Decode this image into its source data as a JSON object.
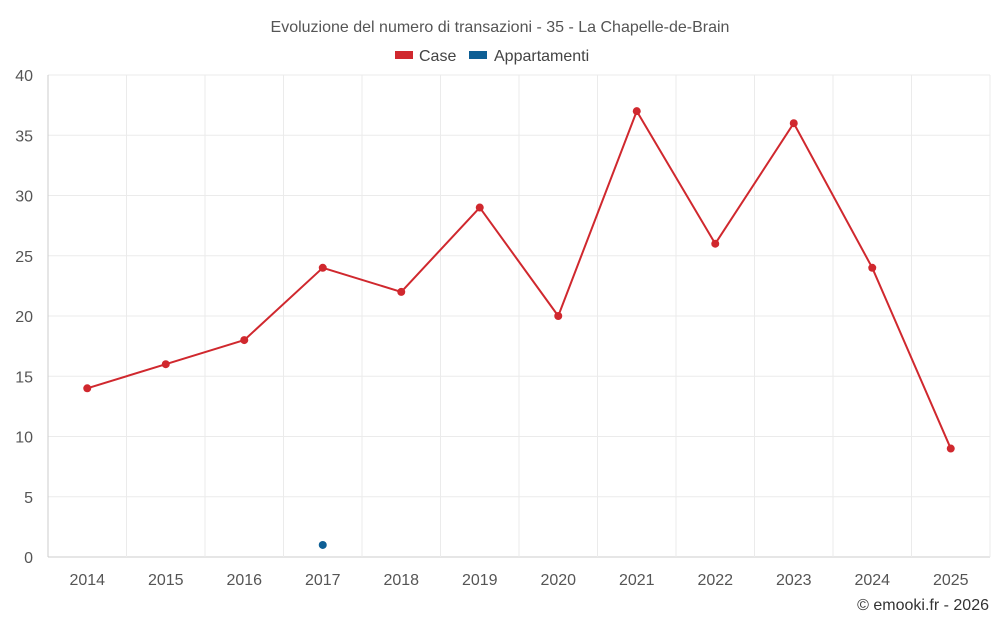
{
  "chart_data": {
    "type": "line",
    "title": "Evoluzione del numero di transazioni - 35 - La Chapelle-de-Brain",
    "xlabel": "",
    "ylabel": "",
    "categories": [
      "2014",
      "2015",
      "2016",
      "2017",
      "2018",
      "2019",
      "2020",
      "2021",
      "2022",
      "2023",
      "2024",
      "2025"
    ],
    "ylim": [
      0,
      40
    ],
    "yticks": [
      0,
      5,
      10,
      15,
      20,
      25,
      30,
      35,
      40
    ],
    "grid": true,
    "legend_position": "top-center",
    "series": [
      {
        "name": "Case",
        "color": "#d0282e",
        "values": [
          14,
          16,
          18,
          24,
          22,
          29,
          20,
          37,
          26,
          36,
          24,
          9
        ]
      },
      {
        "name": "Appartamenti",
        "color": "#0e5f95",
        "values": [
          null,
          null,
          null,
          1,
          null,
          null,
          null,
          null,
          null,
          null,
          null,
          null
        ]
      }
    ]
  },
  "credit": "© emooki.fr - 2026"
}
